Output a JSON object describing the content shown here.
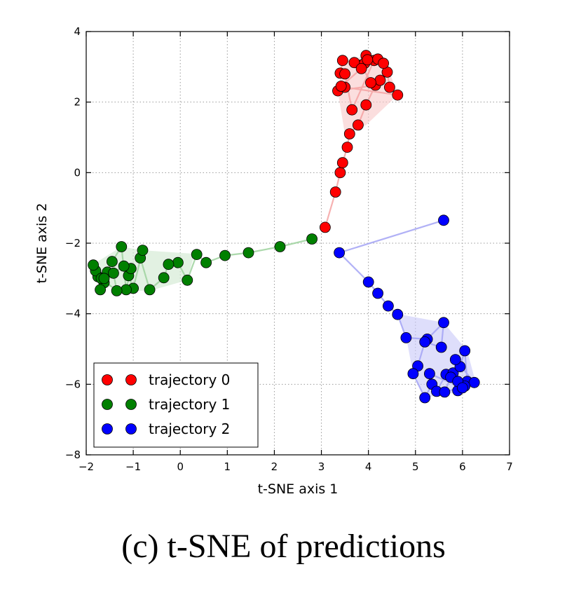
{
  "caption": "(c) t-SNE of predictions",
  "chart_data": {
    "type": "scatter",
    "xlabel": "t-SNE axis 1",
    "ylabel": "t-SNE axis 2",
    "xlim": [
      -2,
      7
    ],
    "ylim": [
      -8,
      4
    ],
    "xticks": [
      -2,
      -1,
      0,
      1,
      2,
      3,
      4,
      5,
      6,
      7
    ],
    "yticks": [
      -8,
      -6,
      -4,
      -2,
      0,
      2,
      4
    ],
    "grid": true,
    "legend_position": "lower-left",
    "series": [
      {
        "name": "trajectory 0",
        "color": "#ff0000",
        "line_color": "#f4a3a3",
        "fill_color": "#f8c8c8",
        "hull": [
          [
            3.45,
            3.15
          ],
          [
            3.95,
            3.32
          ],
          [
            4.3,
            3.12
          ],
          [
            4.45,
            2.85
          ],
          [
            4.62,
            2.2
          ],
          [
            3.95,
            1.35
          ],
          [
            3.5,
            1.1
          ],
          [
            3.35,
            2.3
          ]
        ],
        "x": [
          3.08,
          3.3,
          3.4,
          3.45,
          3.55,
          3.6,
          3.78,
          3.95,
          4.15,
          3.35,
          3.5,
          4.62,
          4.45,
          4.4,
          4.25,
          4.05,
          3.85,
          3.7,
          3.45,
          3.4,
          3.5,
          3.65,
          4.12,
          3.95,
          4.2,
          3.92,
          4.32,
          3.98,
          3.85,
          3.42
        ],
        "y": [
          -1.55,
          -0.55,
          0.0,
          0.28,
          0.72,
          1.1,
          1.35,
          1.92,
          2.48,
          2.32,
          2.42,
          2.2,
          2.42,
          2.85,
          2.62,
          2.55,
          3.05,
          3.12,
          3.18,
          2.82,
          2.8,
          1.78,
          3.18,
          3.32,
          3.22,
          3.1,
          3.1,
          3.2,
          2.95,
          2.45
        ]
      },
      {
        "name": "trajectory 1",
        "color": "#008000",
        "line_color": "#9ed29e",
        "fill_color": "#cfe8cf",
        "hull": [
          [
            -1.85,
            -2.6
          ],
          [
            -1.25,
            -2.1
          ],
          [
            -0.8,
            -2.2
          ],
          [
            0.3,
            -2.3
          ],
          [
            0.15,
            -3.05
          ],
          [
            -0.65,
            -3.35
          ],
          [
            -1.3,
            -3.35
          ],
          [
            -1.85,
            -3.05
          ]
        ],
        "x": [
          2.8,
          2.12,
          1.45,
          0.95,
          0.55,
          0.35,
          0.15,
          -0.05,
          -0.25,
          -0.35,
          -0.65,
          -0.85,
          -0.8,
          -1.0,
          -1.1,
          -1.05,
          -1.15,
          -1.25,
          -1.45,
          -1.55,
          -1.62,
          -1.7,
          -1.75,
          -1.8,
          -1.85,
          -1.68,
          -1.35,
          -1.42,
          -1.2,
          -1.62
        ],
        "y": [
          -1.88,
          -2.1,
          -2.27,
          -2.35,
          -2.55,
          -2.32,
          -3.05,
          -2.55,
          -2.6,
          -2.98,
          -3.32,
          -2.42,
          -2.2,
          -3.28,
          -2.92,
          -2.72,
          -3.32,
          -2.1,
          -2.52,
          -2.82,
          -3.12,
          -3.32,
          -2.95,
          -2.78,
          -2.62,
          -3.0,
          -3.35,
          -2.85,
          -2.65,
          -3.0
        ]
      },
      {
        "name": "trajectory 2",
        "color": "#0000ff",
        "line_color": "#a3a3f4",
        "fill_color": "#c8c8f8",
        "hull": [
          [
            4.6,
            -4.0
          ],
          [
            5.6,
            -4.25
          ],
          [
            6.1,
            -5.05
          ],
          [
            6.28,
            -5.95
          ],
          [
            6.0,
            -6.2
          ],
          [
            5.2,
            -6.38
          ],
          [
            4.95,
            -5.7
          ],
          [
            4.8,
            -4.65
          ]
        ],
        "x": [
          5.6,
          3.38,
          4.0,
          4.2,
          4.42,
          4.62,
          4.8,
          5.25,
          5.6,
          5.55,
          5.2,
          5.05,
          4.95,
          5.2,
          5.35,
          5.45,
          5.65,
          5.8,
          5.95,
          6.05,
          6.1,
          6.25,
          5.85,
          5.9,
          6.05,
          5.62,
          5.75,
          5.9,
          6.0,
          5.3
        ],
        "y": [
          -1.35,
          -2.27,
          -3.1,
          -3.42,
          -3.78,
          -4.02,
          -4.68,
          -4.72,
          -4.25,
          -4.95,
          -4.8,
          -5.48,
          -5.7,
          -6.38,
          -6.0,
          -6.2,
          -5.72,
          -5.68,
          -5.5,
          -5.05,
          -5.92,
          -5.95,
          -5.3,
          -6.18,
          -6.05,
          -6.22,
          -5.8,
          -5.92,
          -6.1,
          -5.7
        ]
      }
    ]
  }
}
